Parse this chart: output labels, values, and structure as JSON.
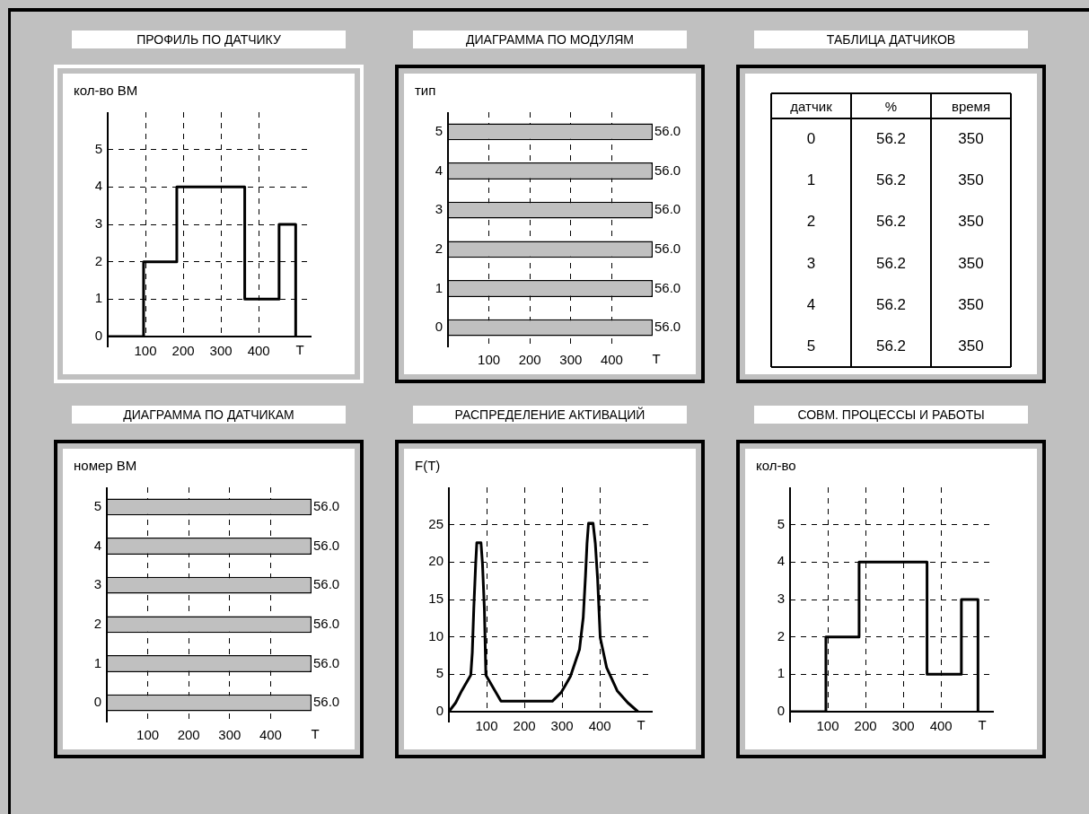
{
  "chart_data": [
    {
      "type": "step",
      "title": "ПРОФИЛЬ ПО ДАТЧИКУ",
      "xlabel": "T",
      "ylabel": "кол-во ВМ",
      "color": "#000000",
      "x": [
        0,
        95,
        183,
        363,
        454,
        498
      ],
      "values": [
        0,
        2,
        4,
        1,
        3,
        0
      ],
      "xlim": [
        0,
        540
      ],
      "ylim": [
        0,
        6
      ],
      "xticks": [
        100,
        200,
        300,
        400
      ],
      "yticks": [
        0,
        1,
        2,
        3,
        4,
        5
      ],
      "grid": true
    },
    {
      "type": "bar",
      "orientation": "horizontal",
      "title": "ДИАГРАММА ПО МОДУЛЯМ",
      "xlabel": "T",
      "ylabel": "тип",
      "color": "#c0c0c0",
      "categories": [
        "5",
        "4",
        "3",
        "2",
        "1",
        "0"
      ],
      "values": [
        500,
        500,
        500,
        500,
        500,
        500
      ],
      "annotations": [
        "56.0",
        "56.0",
        "56.0",
        "56.0",
        "56.0",
        "56.0"
      ],
      "xlim": [
        0,
        500
      ],
      "xticks": [
        100,
        200,
        300,
        400
      ],
      "grid": "x"
    },
    {
      "type": "heatmap",
      "title": "ТАБЛИЦА ДАТЧИКОВ",
      "ylabel": "датчик",
      "categories": [
        "%",
        "время"
      ],
      "data_labels": true,
      "y_categories": [
        "0",
        "1",
        "2",
        "3",
        "4",
        "5"
      ],
      "cells": [
        [
          56.2,
          350
        ],
        [
          56.2,
          350
        ],
        [
          56.2,
          350
        ],
        [
          56.2,
          350
        ],
        [
          56.2,
          350
        ],
        [
          56.2,
          350
        ]
      ]
    },
    {
      "type": "bar",
      "orientation": "horizontal",
      "title": "ДИАГРАММА ПО ДАТЧИКАМ",
      "xlabel": "T",
      "ylabel": "номер ВМ",
      "color": "#c0c0c0",
      "categories": [
        "5",
        "4",
        "3",
        "2",
        "1",
        "0"
      ],
      "values": [
        500,
        500,
        500,
        500,
        500,
        500
      ],
      "annotations": [
        "56.0",
        "56.0",
        "56.0",
        "56.0",
        "56.0",
        "56.0"
      ],
      "xlim": [
        0,
        500
      ],
      "xticks": [
        100,
        200,
        300,
        400
      ],
      "grid": "x"
    },
    {
      "type": "line",
      "title": "РАСПРЕДЕЛЕНИЕ АКТИВАЦИЙ",
      "xlabel": "T",
      "ylabel": "F(T)",
      "color": "#000000",
      "x": [
        0,
        18,
        34,
        58,
        62,
        66,
        71,
        74,
        85,
        89,
        94,
        98,
        138,
        274,
        298,
        322,
        346,
        356,
        362,
        366,
        370,
        382,
        388,
        394,
        401,
        418,
        446,
        474,
        501
      ],
      "values": [
        0,
        1.2,
        2.8,
        4.9,
        7.9,
        13.8,
        19.8,
        22.6,
        22.6,
        19.8,
        13.8,
        4.9,
        1.4,
        1.4,
        2.6,
        4.7,
        8.3,
        12.6,
        18.2,
        22.5,
        25.2,
        25.2,
        22.5,
        17.8,
        9.9,
        5.9,
        2.8,
        1.2,
        0
      ],
      "xlim": [
        0,
        540
      ],
      "ylim": [
        0,
        30
      ],
      "xticks": [
        100,
        200,
        300,
        400
      ],
      "yticks": [
        0,
        5,
        10,
        15,
        20,
        25
      ],
      "grid": true
    },
    {
      "type": "step",
      "title": "СОВМ. ПРОЦЕССЫ И РАБОТЫ",
      "xlabel": "T",
      "ylabel": "кол-во",
      "color": "#000000",
      "x": [
        0,
        95,
        183,
        363,
        454,
        498
      ],
      "values": [
        0,
        2,
        4,
        1,
        3,
        0
      ],
      "xlim": [
        0,
        540
      ],
      "ylim": [
        0,
        6
      ],
      "xticks": [
        100,
        200,
        300,
        400
      ],
      "yticks": [
        0,
        1,
        2,
        3,
        4,
        5
      ],
      "grid": true
    }
  ]
}
